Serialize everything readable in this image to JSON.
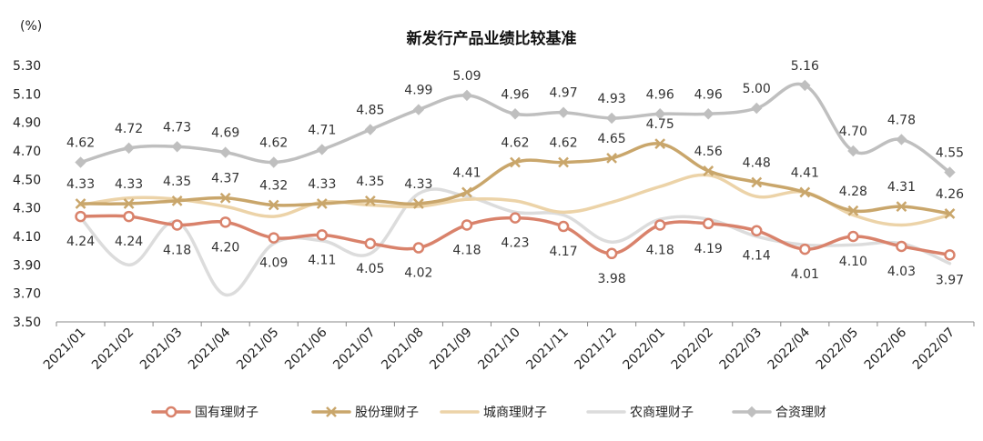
{
  "chart_data": {
    "type": "line",
    "title": "新发行产品业绩比较基准",
    "ylabel": "(%)",
    "xlabel": "",
    "ylim": [
      3.5,
      5.3
    ],
    "yticks": [
      "3.50",
      "3.70",
      "3.90",
      "4.10",
      "4.30",
      "4.50",
      "4.70",
      "4.90",
      "5.10",
      "5.30"
    ],
    "grid": false,
    "legend_position": "bottom",
    "categories": [
      "2021/01",
      "2021/02",
      "2021/03",
      "2021/04",
      "2021/05",
      "2021/06",
      "2021/07",
      "2021/08",
      "2021/09",
      "2021/10",
      "2021/11",
      "2021/12",
      "2022/01",
      "2022/02",
      "2022/03",
      "2022/04",
      "2022/05",
      "2022/06",
      "2022/07"
    ],
    "series": [
      {
        "name": "国有理财子",
        "color": "#d9826b",
        "marker": "circle",
        "show_labels": true,
        "label_side": "below",
        "values": [
          4.24,
          4.24,
          4.18,
          4.2,
          4.09,
          4.11,
          4.05,
          4.02,
          4.18,
          4.23,
          4.17,
          3.98,
          4.18,
          4.19,
          4.14,
          4.01,
          4.1,
          4.03,
          3.97
        ],
        "labels": [
          "4.24",
          "4.24",
          "4.18",
          "4.20",
          "4.09",
          "4.11",
          "4.05",
          "4.02",
          "4.18",
          "4.23",
          "4.17",
          "3.98",
          "4.18",
          "4.19",
          "4.14",
          "4.01",
          "4.10",
          "4.03",
          "3.97"
        ]
      },
      {
        "name": "股份理财子",
        "color": "#c9a66b",
        "marker": "x",
        "show_labels": true,
        "label_side": "above",
        "values": [
          4.33,
          4.33,
          4.35,
          4.37,
          4.32,
          4.33,
          4.35,
          4.33,
          4.41,
          4.62,
          4.62,
          4.65,
          4.75,
          4.56,
          4.48,
          4.41,
          4.28,
          4.31,
          4.26
        ],
        "labels": [
          "4.33",
          "4.33",
          "4.35",
          "4.37",
          "4.32",
          "4.33",
          "4.35",
          "4.33",
          "4.41",
          "4.62",
          "4.62",
          "4.65",
          "4.75",
          "4.56",
          "4.48",
          "4.41",
          "4.28",
          "4.31",
          "4.26"
        ]
      },
      {
        "name": "城商理财子",
        "color": "#ecd3a8",
        "marker": "none",
        "show_labels": false,
        "values": [
          4.32,
          4.37,
          4.36,
          4.31,
          4.24,
          4.34,
          4.32,
          4.31,
          4.36,
          4.35,
          4.27,
          4.34,
          4.45,
          4.53,
          4.38,
          4.41,
          4.25,
          4.18,
          4.25
        ]
      },
      {
        "name": "农商理财子",
        "color": "#dcdcdc",
        "marker": "none",
        "show_labels": false,
        "values": [
          4.23,
          3.9,
          4.2,
          3.69,
          4.05,
          4.07,
          3.98,
          4.4,
          4.38,
          4.27,
          4.25,
          4.06,
          4.22,
          4.22,
          4.1,
          4.04,
          4.04,
          4.05,
          3.91
        ]
      },
      {
        "name": "合资理财",
        "color": "#bfbfbf",
        "marker": "diamond",
        "show_labels": true,
        "label_side": "above",
        "values": [
          4.62,
          4.72,
          4.73,
          4.69,
          4.62,
          4.71,
          4.85,
          4.99,
          5.09,
          4.96,
          4.97,
          4.93,
          4.96,
          4.96,
          5.0,
          5.16,
          4.7,
          4.78,
          4.55
        ],
        "labels": [
          "4.62",
          "4.72",
          "4.73",
          "4.69",
          "4.62",
          "4.71",
          "4.85",
          "4.99",
          "5.09",
          "4.96",
          "4.97",
          "4.93",
          "4.96",
          "4.96",
          "5.00",
          "5.16",
          "4.70",
          "4.78",
          "4.55"
        ]
      }
    ]
  }
}
